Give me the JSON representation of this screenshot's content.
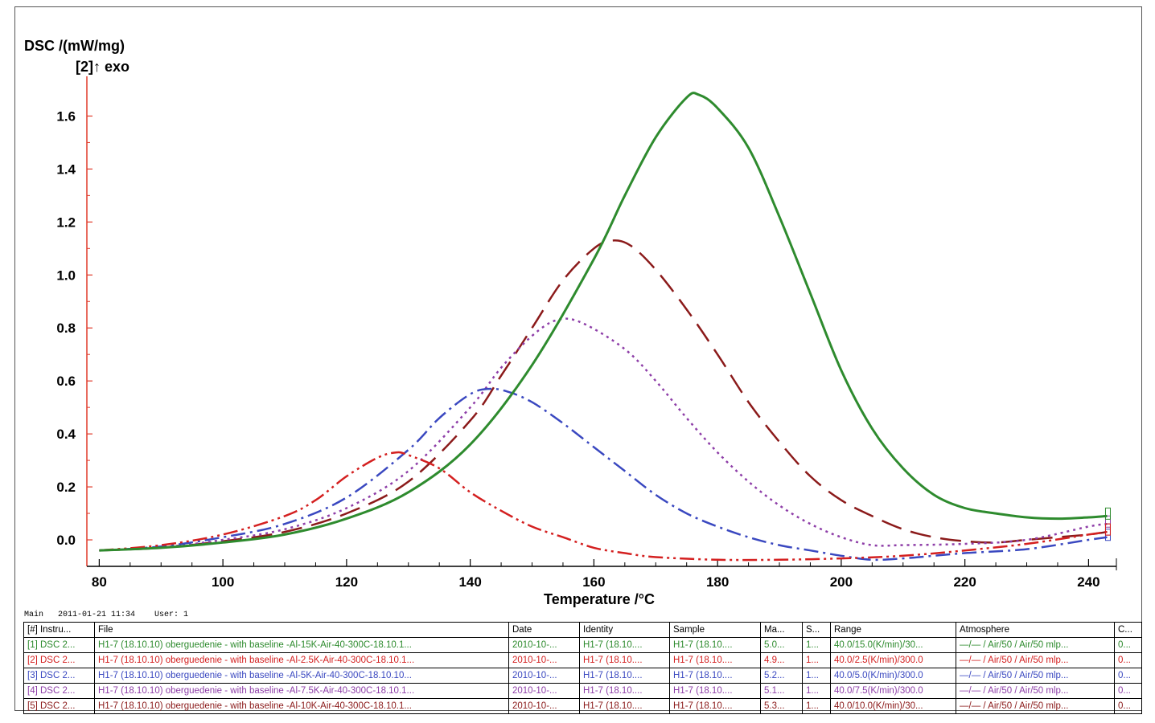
{
  "chart_data": {
    "type": "line",
    "ylabel": "DSC /(mW/mg)",
    "ylabel_note": "[2]↑ exo",
    "xlabel": "Temperature /°C",
    "xlim": [
      78,
      244.5
    ],
    "ylim": [
      -0.1,
      1.75
    ],
    "x_ticks": [
      "80",
      "100",
      "120",
      "140",
      "160",
      "180",
      "200",
      "220",
      "240"
    ],
    "y_ticks": [
      "0.0",
      "0.2",
      "0.4",
      "0.6",
      "0.8",
      "1.0",
      "1.2",
      "1.4",
      "1.6"
    ],
    "grid": false,
    "series": [
      {
        "color": "#2e8b2e",
        "dash": "solid",
        "points": [
          [
            80,
            -0.04
          ],
          [
            90,
            -0.03
          ],
          [
            100,
            -0.01
          ],
          [
            110,
            0.02
          ],
          [
            120,
            0.08
          ],
          [
            130,
            0.18
          ],
          [
            140,
            0.36
          ],
          [
            150,
            0.66
          ],
          [
            160,
            1.06
          ],
          [
            165,
            1.3
          ],
          [
            170,
            1.52
          ],
          [
            175,
            1.67
          ],
          [
            177,
            1.68
          ],
          [
            180,
            1.63
          ],
          [
            185,
            1.48
          ],
          [
            190,
            1.22
          ],
          [
            195,
            0.93
          ],
          [
            200,
            0.64
          ],
          [
            205,
            0.42
          ],
          [
            210,
            0.27
          ],
          [
            215,
            0.17
          ],
          [
            220,
            0.12
          ],
          [
            225,
            0.1
          ],
          [
            230,
            0.085
          ],
          [
            235,
            0.08
          ],
          [
            240,
            0.085
          ],
          [
            243,
            0.09
          ]
        ]
      },
      {
        "color": "#d42020",
        "dash": "long-dash-dot-dot",
        "points": [
          [
            80,
            -0.04
          ],
          [
            90,
            -0.02
          ],
          [
            100,
            0.02
          ],
          [
            110,
            0.09
          ],
          [
            115,
            0.15
          ],
          [
            120,
            0.24
          ],
          [
            125,
            0.31
          ],
          [
            128,
            0.33
          ],
          [
            130,
            0.32
          ],
          [
            135,
            0.27
          ],
          [
            140,
            0.18
          ],
          [
            145,
            0.11
          ],
          [
            150,
            0.05
          ],
          [
            155,
            0.01
          ],
          [
            160,
            -0.03
          ],
          [
            165,
            -0.05
          ],
          [
            170,
            -0.065
          ],
          [
            180,
            -0.075
          ],
          [
            190,
            -0.075
          ],
          [
            200,
            -0.07
          ],
          [
            210,
            -0.06
          ],
          [
            220,
            -0.04
          ],
          [
            230,
            -0.015
          ],
          [
            240,
            0.02
          ],
          [
            243,
            0.03
          ]
        ]
      },
      {
        "color": "#3a48c0",
        "dash": "dash-dot",
        "points": [
          [
            80,
            -0.04
          ],
          [
            90,
            -0.025
          ],
          [
            100,
            0.01
          ],
          [
            110,
            0.06
          ],
          [
            120,
            0.16
          ],
          [
            130,
            0.34
          ],
          [
            135,
            0.46
          ],
          [
            140,
            0.55
          ],
          [
            143,
            0.57
          ],
          [
            146,
            0.56
          ],
          [
            150,
            0.52
          ],
          [
            155,
            0.44
          ],
          [
            160,
            0.35
          ],
          [
            165,
            0.26
          ],
          [
            170,
            0.17
          ],
          [
            175,
            0.1
          ],
          [
            180,
            0.05
          ],
          [
            185,
            0.01
          ],
          [
            190,
            -0.02
          ],
          [
            195,
            -0.04
          ],
          [
            200,
            -0.06
          ],
          [
            205,
            -0.075
          ],
          [
            210,
            -0.07
          ],
          [
            215,
            -0.06
          ],
          [
            220,
            -0.05
          ],
          [
            230,
            -0.035
          ],
          [
            240,
            0.0
          ],
          [
            243,
            0.01
          ]
        ]
      },
      {
        "color": "#8e3ea8",
        "dash": "dot",
        "points": [
          [
            80,
            -0.04
          ],
          [
            90,
            -0.028
          ],
          [
            100,
            0.0
          ],
          [
            110,
            0.04
          ],
          [
            120,
            0.12
          ],
          [
            130,
            0.26
          ],
          [
            140,
            0.5
          ],
          [
            145,
            0.65
          ],
          [
            150,
            0.77
          ],
          [
            154,
            0.83
          ],
          [
            158,
            0.82
          ],
          [
            165,
            0.72
          ],
          [
            170,
            0.6
          ],
          [
            175,
            0.46
          ],
          [
            180,
            0.33
          ],
          [
            185,
            0.22
          ],
          [
            190,
            0.13
          ],
          [
            195,
            0.06
          ],
          [
            200,
            0.01
          ],
          [
            205,
            -0.02
          ],
          [
            210,
            -0.02
          ],
          [
            220,
            -0.015
          ],
          [
            230,
            0.0
          ],
          [
            240,
            0.05
          ],
          [
            243,
            0.06
          ]
        ]
      },
      {
        "color": "#8b1a1a",
        "dash": "long-dash",
        "points": [
          [
            80,
            -0.04
          ],
          [
            90,
            -0.03
          ],
          [
            100,
            -0.005
          ],
          [
            110,
            0.03
          ],
          [
            120,
            0.1
          ],
          [
            130,
            0.22
          ],
          [
            140,
            0.45
          ],
          [
            145,
            0.62
          ],
          [
            150,
            0.8
          ],
          [
            155,
            0.98
          ],
          [
            160,
            1.1
          ],
          [
            163,
            1.13
          ],
          [
            166,
            1.11
          ],
          [
            170,
            1.02
          ],
          [
            175,
            0.87
          ],
          [
            180,
            0.7
          ],
          [
            185,
            0.52
          ],
          [
            190,
            0.37
          ],
          [
            195,
            0.24
          ],
          [
            200,
            0.15
          ],
          [
            205,
            0.09
          ],
          [
            210,
            0.04
          ],
          [
            215,
            0.01
          ],
          [
            220,
            -0.005
          ],
          [
            225,
            -0.01
          ],
          [
            230,
            0.0
          ],
          [
            235,
            0.01
          ],
          [
            240,
            0.02
          ],
          [
            243,
            0.03
          ]
        ]
      }
    ]
  },
  "status_line": "Main   2011-01-21 11:34    User: 1",
  "legend": {
    "headers": [
      "[#] Instru...",
      "File",
      "Date",
      "Identity",
      "Sample",
      "Ma...",
      "S...",
      "Range",
      "Atmosphere",
      "C..."
    ],
    "rows": [
      {
        "color": "#2e8b2e",
        "cells": [
          "[1] DSC 2...",
          "H1-7 (18.10.10) oberguedenie - with baseline -Al-15K-Air-40-300C-18.10.1...",
          "2010-10-...",
          "H1-7 (18.10....",
          "H1-7 (18.10....",
          "5.0...",
          "1...",
          "40.0/15.0(K/min)/30...",
          "—/— / Air/50 / Air/50 mlp...",
          "0..."
        ]
      },
      {
        "color": "#d42020",
        "cells": [
          "[2] DSC 2...",
          "H1-7 (18.10.10) oberguedenie - with baseline -Al-2.5K-Air-40-300C-18.10.1...",
          "2010-10-...",
          "H1-7 (18.10....",
          "H1-7 (18.10....",
          "4.9...",
          "1...",
          "40.0/2.5(K/min)/300.0",
          "—/— / Air/50 / Air/50 mlp...",
          "0..."
        ]
      },
      {
        "color": "#3a48c0",
        "cells": [
          "[3] DSC 2...",
          "H1-7 (18.10.10) oberguedenie - with baseline -Al-5K-Air-40-300C-18.10.10...",
          "2010-10-...",
          "H1-7 (18.10....",
          "H1-7 (18.10....",
          "5.2...",
          "1...",
          "40.0/5.0(K/min)/300.0",
          "—/— / Air/50 / Air/50 mlp...",
          "0..."
        ]
      },
      {
        "color": "#8e3ea8",
        "cells": [
          "[4] DSC 2...",
          "H1-7 (18.10.10) oberguedenie - with baseline -Al-7.5K-Air-40-300C-18.10.1...",
          "2010-10-...",
          "H1-7 (18.10....",
          "H1-7 (18.10....",
          "5.1...",
          "1...",
          "40.0/7.5(K/min)/300.0",
          "—/— / Air/50 / Air/50 mlp...",
          "0..."
        ]
      },
      {
        "color": "#8b1a1a",
        "cells": [
          "[5] DSC 2...",
          "H1-7 (18.10.10) oberguedenie - with baseline -Al-10K-Air-40-300C-18.10.1...",
          "2010-10-...",
          "H1-7 (18.10....",
          "H1-7 (18.10....",
          "5.3...",
          "1...",
          "40.0/10.0(K/min)/30...",
          "—/— / Air/50 / Air/50 mlp...",
          "0..."
        ]
      }
    ]
  },
  "colors": {
    "y_axis": "#e03a2a",
    "axis": "#000000"
  }
}
